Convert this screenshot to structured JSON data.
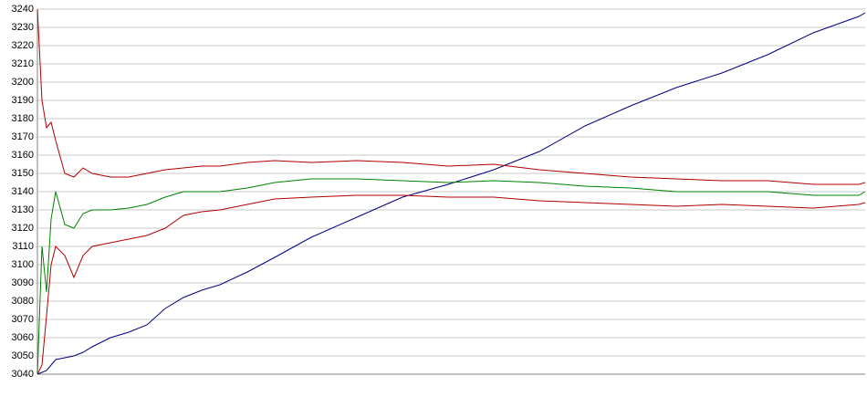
{
  "chart_data": {
    "type": "line",
    "x": [
      0,
      5,
      10,
      15,
      20,
      30,
      40,
      50,
      60,
      80,
      100,
      120,
      140,
      160,
      180,
      200,
      230,
      260,
      300,
      350,
      400,
      450,
      500,
      550,
      600,
      650,
      700,
      750,
      800,
      850,
      900,
      907
    ],
    "xlim": [
      0,
      907
    ],
    "ylim": [
      3040,
      3240
    ],
    "yticks": [
      3040,
      3050,
      3060,
      3070,
      3080,
      3090,
      3100,
      3110,
      3120,
      3130,
      3140,
      3150,
      3160,
      3170,
      3180,
      3190,
      3200,
      3210,
      3220,
      3230,
      3240
    ],
    "grid": true,
    "series": [
      {
        "color": "#000080",
        "values": [
          3040,
          3041,
          3042,
          3045,
          3048,
          3049,
          3050,
          3052,
          3055,
          3060,
          3063,
          3067,
          3076,
          3082,
          3086,
          3089,
          3096,
          3104,
          3115,
          3126,
          3137,
          3144,
          3152,
          3162,
          3176,
          3187,
          3197,
          3205,
          3215,
          3227,
          3236,
          3238
        ]
      },
      {
        "color": "#008000",
        "values": [
          3040,
          3110,
          3085,
          3125,
          3140,
          3122,
          3120,
          3128,
          3130,
          3130,
          3131,
          3133,
          3137,
          3140,
          3140,
          3140,
          3142,
          3145,
          3147,
          3147,
          3146,
          3145,
          3146,
          3145,
          3143,
          3142,
          3140,
          3140,
          3140,
          3138,
          3138,
          3140
        ]
      },
      {
        "color": "#b00000",
        "values": [
          3240,
          3190,
          3175,
          3178,
          3168,
          3150,
          3148,
          3153,
          3150,
          3148,
          3148,
          3150,
          3152,
          3153,
          3154,
          3154,
          3156,
          3157,
          3156,
          3157,
          3156,
          3154,
          3155,
          3152,
          3150,
          3148,
          3147,
          3146,
          3146,
          3144,
          3144,
          3145
        ]
      },
      {
        "color": "#b00000",
        "values": [
          3040,
          3045,
          3072,
          3100,
          3110,
          3105,
          3093,
          3105,
          3110,
          3112,
          3114,
          3116,
          3120,
          3127,
          3129,
          3130,
          3133,
          3136,
          3137,
          3138,
          3138,
          3137,
          3137,
          3135,
          3134,
          3133,
          3132,
          3133,
          3132,
          3131,
          3133,
          3134
        ]
      }
    ]
  }
}
